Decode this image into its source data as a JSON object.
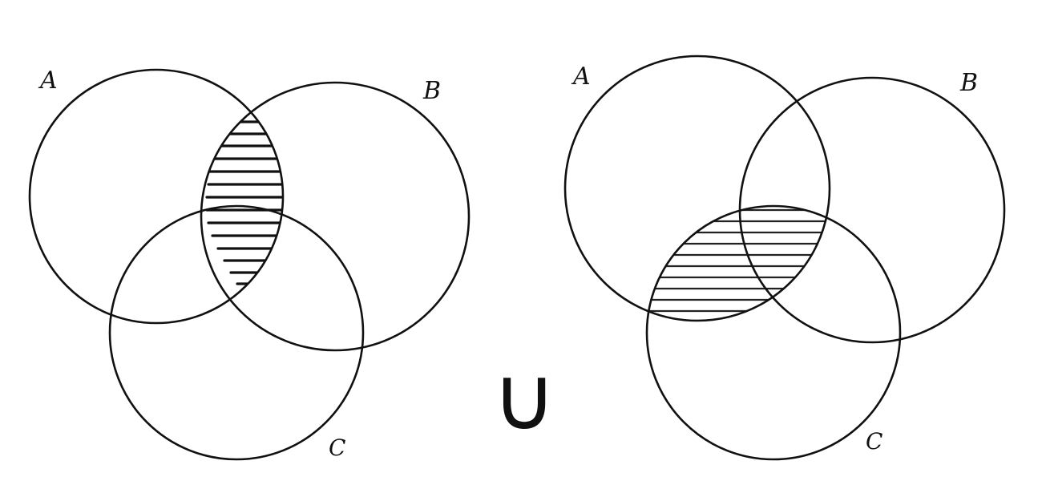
{
  "diagram": {
    "left": {
      "labels": {
        "a": "A",
        "b": "B",
        "c": "C"
      },
      "shaded_region": "A ∩ B"
    },
    "operator": "∪",
    "right": {
      "labels": {
        "a": "A",
        "b": "B",
        "c": "C"
      },
      "shaded_region": "A ∩ C"
    }
  },
  "colors": {
    "ink": "#111111",
    "background": "#ffffff"
  }
}
